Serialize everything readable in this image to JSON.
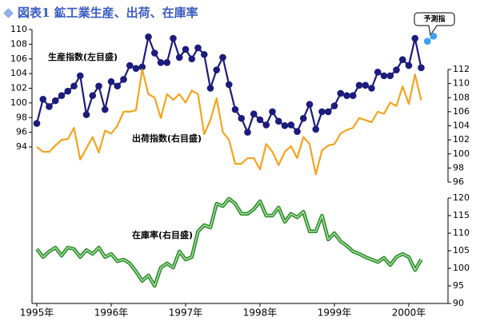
{
  "chart_data": {
    "type": "line",
    "title": "図表1 鉱工業生産、出荷、在庫率",
    "annotations": [
      "生産指数(左目盛)",
      "出荷指数(右目盛)",
      "在庫率(右目盛)",
      "予測指"
    ],
    "categories": [
      "1995年",
      null,
      null,
      null,
      null,
      null,
      null,
      null,
      null,
      null,
      null,
      null,
      "1996年",
      null,
      null,
      null,
      null,
      null,
      null,
      null,
      null,
      null,
      null,
      null,
      "1997年",
      null,
      null,
      null,
      null,
      null,
      null,
      null,
      null,
      null,
      null,
      null,
      "1998年",
      null,
      null,
      null,
      null,
      null,
      null,
      null,
      null,
      null,
      null,
      null,
      "1999年",
      null,
      null,
      null,
      null,
      null,
      null,
      null,
      null,
      null,
      null,
      null,
      "2000年",
      null,
      null,
      null,
      null
    ],
    "ylim": [
      94,
      110
    ],
    "yticks": [
      94,
      96,
      98,
      100,
      102,
      104,
      106,
      108,
      110
    ],
    "y2lim": [
      96,
      112
    ],
    "y2ticks": [
      96,
      98,
      100,
      102,
      104,
      106,
      108,
      110,
      112
    ],
    "y3lim": [
      90,
      120
    ],
    "y3ticks": [
      90,
      95,
      100,
      105,
      110,
      115,
      120
    ],
    "series": [
      {
        "name": "生産指数",
        "color": "#1c1c7c",
        "axis": "y",
        "markers": true,
        "values": [
          97.2,
          100.5,
          99.5,
          100.3,
          101,
          101.6,
          102.3,
          103.7,
          98.4,
          101,
          102.3,
          99.1,
          102.9,
          102.3,
          103.2,
          105.1,
          104.7,
          104.9,
          109,
          106.8,
          105.5,
          105.5,
          108.8,
          106.2,
          107.3,
          106,
          107.5,
          106.6,
          102,
          104.5,
          106.2,
          102.5,
          99.1,
          97.9,
          96,
          98.5,
          97.7,
          97,
          98.8,
          97.5,
          96.9,
          97,
          96.1,
          97.9,
          99.8,
          96.4,
          98.8,
          98.8,
          99.6,
          101.3,
          101,
          101,
          102.4,
          102.4,
          102,
          104.2,
          103.7,
          103.7,
          104.5,
          105.9,
          105.1,
          108.8,
          104.8,
          null,
          null
        ]
      },
      {
        "name": "予測指数",
        "color": "#3fa0f0",
        "axis": "y",
        "markers": true,
        "dashed": true,
        "values": [
          null,
          null,
          null,
          null,
          null,
          null,
          null,
          null,
          null,
          null,
          null,
          null,
          null,
          null,
          null,
          null,
          null,
          null,
          null,
          null,
          null,
          null,
          null,
          null,
          null,
          null,
          null,
          null,
          null,
          null,
          null,
          null,
          null,
          null,
          null,
          null,
          null,
          null,
          null,
          null,
          null,
          null,
          null,
          null,
          null,
          null,
          null,
          null,
          null,
          null,
          null,
          null,
          null,
          null,
          null,
          null,
          null,
          null,
          null,
          null,
          null,
          null,
          null,
          108.4,
          109.1
        ]
      },
      {
        "name": "出荷指数",
        "color": "#f5a31e",
        "axis": "y2",
        "markers": false,
        "values": [
          101,
          100.3,
          100.3,
          101.2,
          102,
          102.1,
          103.7,
          99.2,
          100.8,
          102.4,
          100.2,
          103.3,
          102.9,
          104,
          106,
          106,
          106.2,
          112,
          108.5,
          108,
          105.1,
          108.5,
          107.7,
          108.5,
          107.3,
          109,
          108.5,
          102.8,
          104.8,
          107.9,
          103.1,
          102,
          98.6,
          98.6,
          99.4,
          99.4,
          97.8,
          101.4,
          100.3,
          98.4,
          100.3,
          101.1,
          99.4,
          102.4,
          101.4,
          97.1,
          100.5,
          101.2,
          101.4,
          102.9,
          103.4,
          103.7,
          105.1,
          104.8,
          104.5,
          106,
          105.7,
          107.3,
          106.8,
          109.6,
          107.1,
          111.3,
          107.6,
          null,
          null
        ]
      },
      {
        "name": "在庫率",
        "color": "#2a8a2a",
        "axis": "y3",
        "markers": false,
        "double": true,
        "values": [
          105.5,
          103.2,
          104.8,
          105.9,
          103.6,
          105.9,
          105.5,
          103.2,
          105.2,
          104.1,
          105.9,
          103.2,
          104.1,
          102,
          102.5,
          101.4,
          99.1,
          96.4,
          98,
          95,
          100.2,
          101.4,
          100.2,
          104.8,
          102.5,
          103.2,
          110.5,
          112.3,
          111.6,
          118.4,
          117.7,
          119.8,
          118.4,
          115.5,
          115.5,
          116.8,
          119.1,
          115,
          115,
          117.3,
          113.2,
          115.5,
          114.5,
          116.1,
          110.5,
          110.5,
          115,
          108.2,
          110,
          107.7,
          106.4,
          104.8,
          104.1,
          103.2,
          102.5,
          101.8,
          103,
          100.9,
          103.2,
          104.1,
          103.2,
          99.5,
          102.5,
          null,
          null
        ]
      }
    ]
  }
}
